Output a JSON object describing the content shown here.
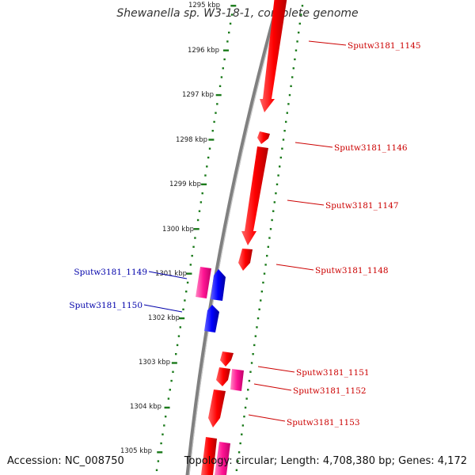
{
  "title": "Shewanella sp. W3-18-1, complete genome",
  "accession": {
    "label": "Accession:",
    "value": "NC_008750"
  },
  "topology": {
    "label": "Topology:",
    "value": "circular",
    "length_label": "Length:",
    "length": "4,708,380 bp",
    "genes_label": "Genes:",
    "genes": "4,172"
  },
  "ticks": [
    "1295 kbp",
    "1296 kbp",
    "1297 kbp",
    "1298 kbp",
    "1299 kbp",
    "1300 kbp",
    "1301 kbp",
    "1302 kbp",
    "1303 kbp",
    "1304 kbp",
    "1305 kbp"
  ],
  "genes": [
    {
      "id": "Sputw3181_1145",
      "strand": "forward",
      "color": "#ff0000"
    },
    {
      "id": "Sputw3181_1146",
      "strand": "forward",
      "color": "#ff0000"
    },
    {
      "id": "Sputw3181_1147",
      "strand": "forward",
      "color": "#ff0000"
    },
    {
      "id": "Sputw3181_1148",
      "strand": "forward",
      "color": "#ff0000"
    },
    {
      "id": "Sputw3181_1149",
      "strand": "reverse",
      "color": "#ff1493"
    },
    {
      "id": "Sputw3181_1150",
      "strand": "reverse",
      "color": "#0000ff"
    },
    {
      "id": "Sputw3181_1151",
      "strand": "forward",
      "color": "#ff0000"
    },
    {
      "id": "Sputw3181_1152",
      "strand": "forward",
      "color": "#ff1493"
    },
    {
      "id": "Sputw3181_1153",
      "strand": "forward",
      "color": "#ff0000"
    }
  ],
  "colors": {
    "forward_cds": "#ff0000",
    "forward_pink": "#ff1493",
    "reverse_cds": "#0000ff",
    "label_forward": "#cc0000",
    "label_reverse": "#0000aa",
    "tick_track": "#1a7a1a",
    "backbone": "#808080"
  }
}
